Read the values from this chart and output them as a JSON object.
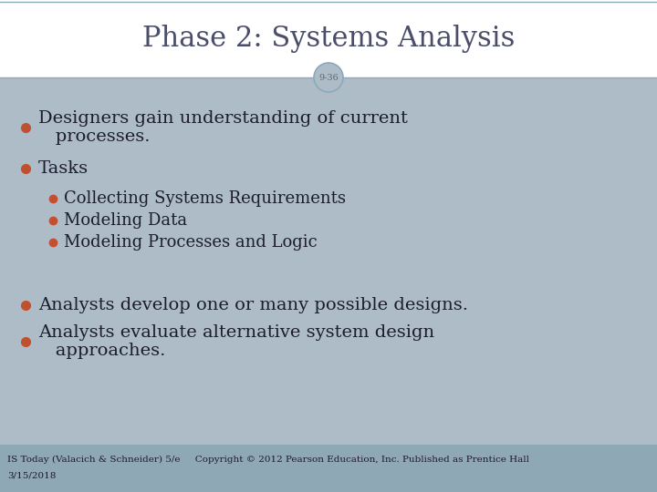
{
  "title": "Phase 2: Systems Analysis",
  "slide_num": "9-36",
  "bg_color": "#adbcc6",
  "title_bg": "#ffffff",
  "title_color": "#4a4e6a",
  "body_text_color": "#1c1c2e",
  "bullet_color": "#c05030",
  "title_fontsize": 22,
  "body_fontsize": 14,
  "sub_fontsize": 13,
  "footer_fontsize": 7.5,
  "footer_left": "IS Today (Valacich & Schneider) 5/e     Copyright © 2012 Pearson Education, Inc. Published as Prentice Hall",
  "footer_right": "3/15/2018",
  "separator_color": "#8aaabb",
  "circle_edge_color": "#8aaabb",
  "circle_face_color": "#adbcc6",
  "circle_text_color": "#5a6a7a",
  "footer_bg": "#8fa8b5"
}
